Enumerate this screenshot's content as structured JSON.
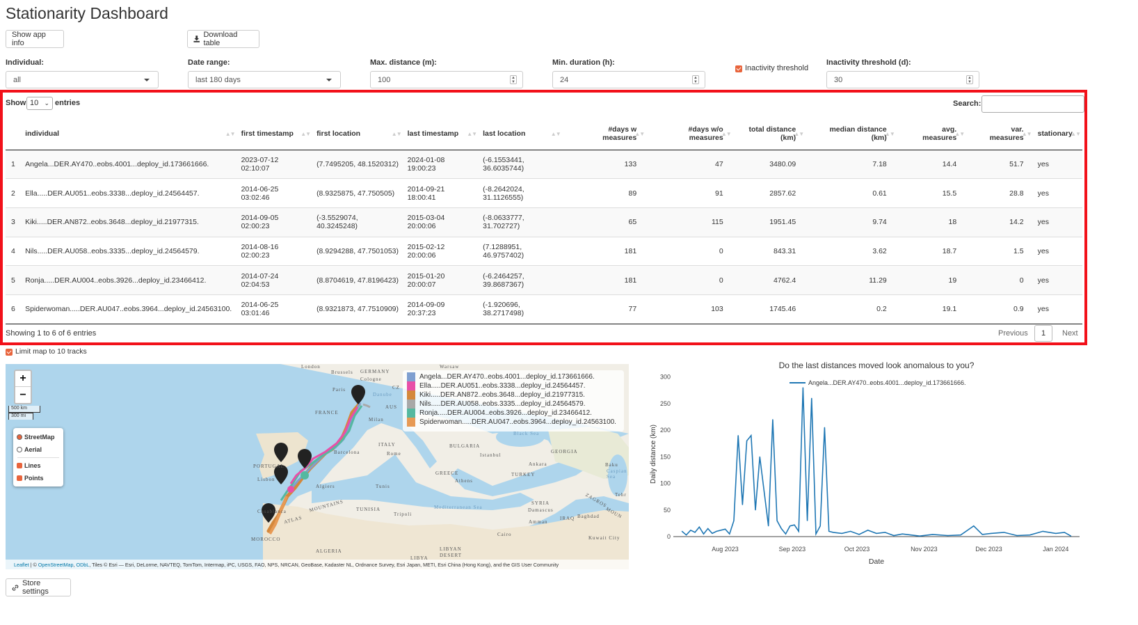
{
  "app": {
    "title": "Stationarity Dashboard"
  },
  "toolbar": {
    "info_label": "Show app info",
    "download_label": "Download table",
    "store_label": "Store settings"
  },
  "controls": {
    "individual": {
      "label": "Individual:",
      "value": "all"
    },
    "date_range": {
      "label": "Date range:",
      "value": "last 180 days"
    },
    "max_distance": {
      "label": "Max. distance (m):",
      "value": "100"
    },
    "min_duration": {
      "label": "Min. duration (h):",
      "value": "24"
    },
    "inactivity_checkbox": {
      "label": "Inactivity threshold",
      "checked": true
    },
    "inactivity_threshold": {
      "label": "Inactivity threshold (d):",
      "value": "30"
    }
  },
  "table": {
    "show_label": "Show",
    "show_value": "10",
    "entries_label": "entries",
    "search_label": "Search:",
    "columns": [
      "individual",
      "first timestamp",
      "first location",
      "last timestamp",
      "last location",
      "#days w measures",
      "#days w/o measures",
      "total distance (km)",
      "median distance (km)",
      "avg. measures",
      "var. measures",
      "stationary"
    ],
    "rows": [
      [
        "1",
        "Angela...DER.AY470..eobs.4001...deploy_id.173661666.",
        "2023-07-12 02:10:07",
        "(7.7495205, 48.1520312)",
        "2024-01-08 19:00:23",
        "(-6.1553441, 36.6035744)",
        "133",
        "47",
        "3480.09",
        "7.18",
        "14.4",
        "51.7",
        "yes"
      ],
      [
        "2",
        "Ella.....DER.AU051..eobs.3338...deploy_id.24564457.",
        "2014-06-25 03:02:46",
        "(8.9325875, 47.750505)",
        "2014-09-21 18:00:41",
        "(-8.2642024, 31.1126555)",
        "89",
        "91",
        "2857.62",
        "0.61",
        "15.5",
        "28.8",
        "yes"
      ],
      [
        "3",
        "Kiki.....DER.AN872..eobs.3648...deploy_id.21977315.",
        "2014-09-05 02:00:23",
        "(-3.5529074, 40.3245248)",
        "2015-03-04 20:00:06",
        "(-8.0633777, 31.702727)",
        "65",
        "115",
        "1951.45",
        "9.74",
        "18",
        "14.2",
        "yes"
      ],
      [
        "4",
        "Nils.....DER.AU058..eobs.3335...deploy_id.24564579.",
        "2014-08-16 02:00:23",
        "(8.9294288, 47.7501053)",
        "2015-02-12 20:00:06",
        "(7.1288951, 46.9757402)",
        "181",
        "0",
        "843.31",
        "3.62",
        "18.7",
        "1.5",
        "yes"
      ],
      [
        "5",
        "Ronja.....DER.AU004..eobs.3926...deploy_id.23466412.",
        "2014-07-24 02:04:53",
        "(8.8704619, 47.8196423)",
        "2015-01-20 20:00:07",
        "(-6.2464257, 39.8687367)",
        "181",
        "0",
        "4762.4",
        "11.29",
        "19",
        "0",
        "yes"
      ],
      [
        "6",
        "Spiderwoman.....DER.AU047..eobs.3964...deploy_id.24563100.",
        "2014-06-25 03:01:46",
        "(8.9321873, 47.7510909)",
        "2014-09-09 20:37:23",
        "(-1.920696, 38.2717498)",
        "77",
        "103",
        "1745.46",
        "0.2",
        "19.1",
        "0.9",
        "yes"
      ]
    ],
    "info": "Showing 1 to 6 of 6 entries",
    "prev_label": "Previous",
    "page": "1",
    "next_label": "Next"
  },
  "map": {
    "limit_label": "Limit map to 10 tracks",
    "zoom_in": "+",
    "zoom_out": "−",
    "scale_km": "500 km",
    "scale_mi": "300 mi",
    "layers": {
      "street": "StreetMap",
      "aerial": "Aerial",
      "lines": "Lines",
      "points": "Points"
    },
    "legend": [
      {
        "name": "Angela...DER.AY470..eobs.4001...deploy_id.173661666.",
        "color": "#7f9fd0"
      },
      {
        "name": "Ella.....DER.AU051..eobs.3338...deploy_id.24564457.",
        "color": "#e84fa8"
      },
      {
        "name": "Kiki.....DER.AN872..eobs.3648...deploy_id.21977315.",
        "color": "#d4883c"
      },
      {
        "name": "Nils.....DER.AU058..eobs.3335...deploy_id.24564579.",
        "color": "#a8a8a8"
      },
      {
        "name": "Ronja.....DER.AU004..eobs.3926...deploy_id.23466412.",
        "color": "#55b8a0"
      },
      {
        "name": "Spiderwoman.....DER.AU047..eobs.3964...deploy_id.24563100.",
        "color": "#e79a55"
      }
    ],
    "places": [
      "London",
      "Brussels",
      "GERMANY",
      "Cologne",
      "Paris",
      "FRANCE",
      "Milan",
      "ITALY",
      "Rome",
      "Barcelona",
      "PORTUGAL",
      "Lisbon",
      "Algiers",
      "Tunis",
      "TUNISIA",
      "Tripoli",
      "MOROCCO",
      "ALGERIA",
      "LIBYA",
      "LIBYAN",
      "DESERT",
      "BULGARIA",
      "Istanbul",
      "GEORGIA",
      "Ankara",
      "Baku",
      "TURKEY",
      "GREECE",
      "Athens",
      "SYRIA",
      "Damascus",
      "Amman",
      "IRAQ",
      "Baghdad",
      "Cairo",
      "Kuwait City",
      "Black Sea",
      "Caspian Sea",
      "Mediterranean Sea",
      "Tehr",
      "Warsaw",
      "ZAGROS",
      "MOUN",
      "ATLAS",
      "MOUNTAINS",
      "Casablanca",
      "AUS",
      "CZ",
      "Danube"
    ],
    "attribution_leaflet": "Leaflet",
    "attribution_osm": "OpenStreetMap",
    "attribution_odbl": "ODbL",
    "attribution_sep": " | © ",
    "attribution_comma": ", ",
    "attribution_text": ", Tiles © Esri — Esri, DeLorme, NAVTEQ, TomTom, Intermap, iPC, USGS, FAO, NPS, NRCAN, GeoBase, Kadaster NL, Ordnance Survey, Esri Japan, METI, Esri China (Hong Kong), and the GIS User Community"
  },
  "chart_data": {
    "type": "line",
    "title": "Do the last distances moved look anomalous to you?",
    "xlabel": "Date",
    "ylabel": "Daily distance (km)",
    "ylim": [
      0,
      310
    ],
    "yticks": [
      0,
      50,
      100,
      150,
      200,
      250,
      300
    ],
    "xticks": [
      "Aug 2023",
      "Sep 2023",
      "Oct 2023",
      "Nov 2023",
      "Dec 2023",
      "Jan 2024"
    ],
    "legend_position": "top-center",
    "series": [
      {
        "name": "Angela...DER.AY470..eobs.4001...deploy_id.173661666.",
        "color": "#1f77b4",
        "x": [
          "2023-07-12",
          "2023-07-14",
          "2023-07-16",
          "2023-07-18",
          "2023-07-20",
          "2023-07-22",
          "2023-07-24",
          "2023-07-26",
          "2023-07-28",
          "2023-07-30",
          "2023-08-01",
          "2023-08-03",
          "2023-08-05",
          "2023-08-07",
          "2023-08-09",
          "2023-08-11",
          "2023-08-13",
          "2023-08-15",
          "2023-08-17",
          "2023-08-19",
          "2023-08-21",
          "2023-08-23",
          "2023-08-25",
          "2023-08-27",
          "2023-08-29",
          "2023-08-31",
          "2023-09-02",
          "2023-09-04",
          "2023-09-06",
          "2023-09-08",
          "2023-09-10",
          "2023-09-12",
          "2023-09-14",
          "2023-09-16",
          "2023-09-18",
          "2023-09-20",
          "2023-09-24",
          "2023-09-28",
          "2023-10-02",
          "2023-10-06",
          "2023-10-10",
          "2023-10-14",
          "2023-10-18",
          "2023-10-22",
          "2023-10-30",
          "2023-11-05",
          "2023-11-12",
          "2023-11-18",
          "2023-11-24",
          "2023-11-28",
          "2023-12-02",
          "2023-12-08",
          "2023-12-14",
          "2023-12-20",
          "2023-12-26",
          "2024-01-01",
          "2024-01-05",
          "2024-01-08"
        ],
        "values": [
          10,
          3,
          12,
          8,
          18,
          5,
          15,
          6,
          10,
          12,
          14,
          5,
          30,
          190,
          60,
          180,
          190,
          50,
          150,
          85,
          20,
          220,
          30,
          15,
          5,
          20,
          22,
          10,
          280,
          30,
          260,
          5,
          20,
          205,
          10,
          8,
          6,
          10,
          4,
          12,
          6,
          8,
          2,
          5,
          1,
          4,
          2,
          3,
          20,
          4,
          6,
          8,
          2,
          3,
          10,
          6,
          8,
          1
        ]
      }
    ]
  }
}
